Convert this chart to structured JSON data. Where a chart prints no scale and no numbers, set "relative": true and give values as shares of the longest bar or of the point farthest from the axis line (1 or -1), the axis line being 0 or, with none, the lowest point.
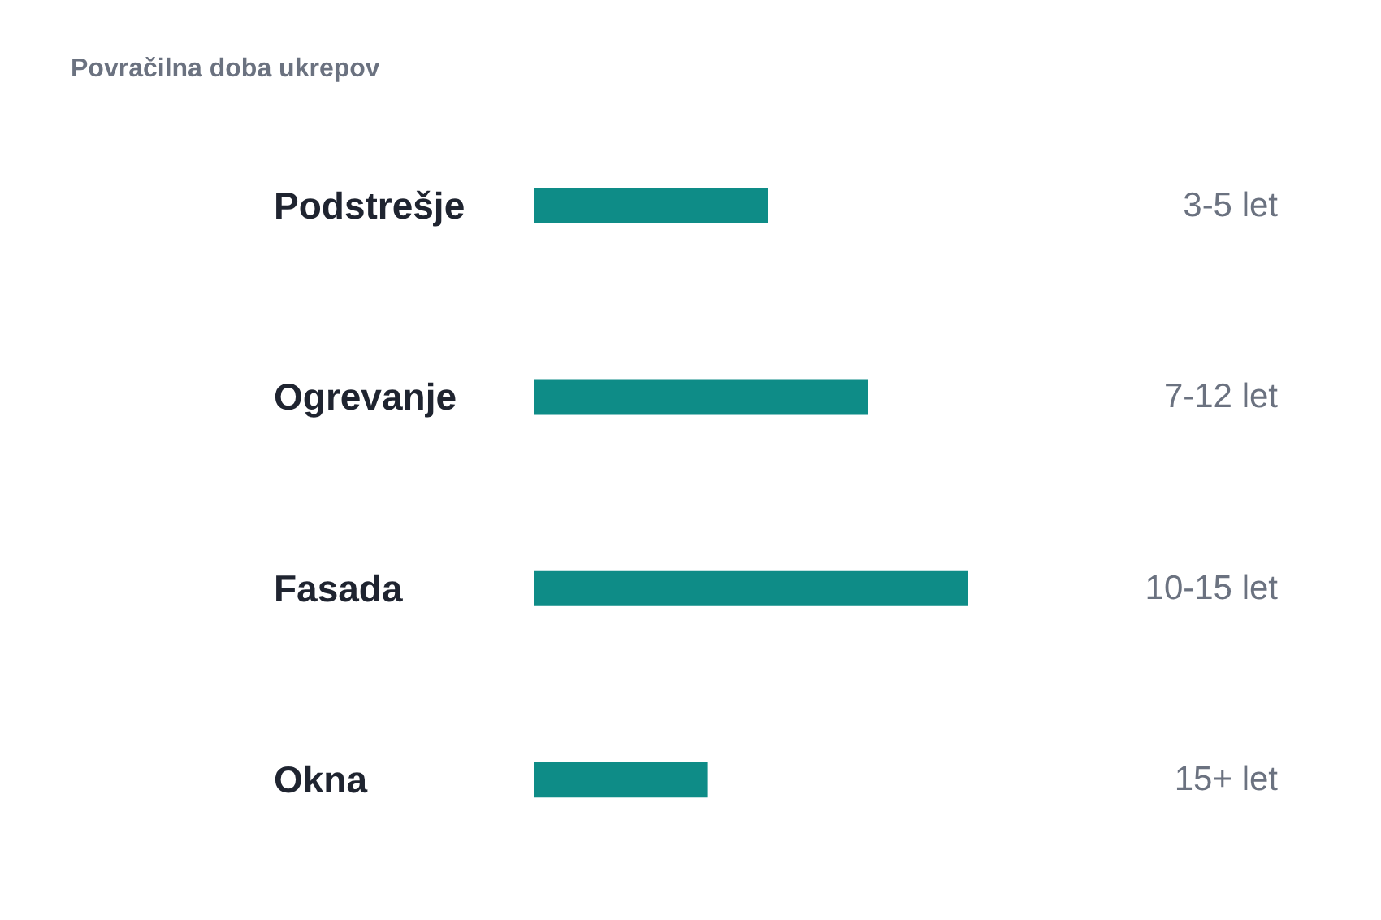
{
  "chart_data": {
    "type": "bar",
    "orientation": "horizontal",
    "relative": true,
    "title": "Povračilna doba ukrepov",
    "categories": [
      "Podstrešje",
      "Ogrevanje",
      "Fasada",
      "Okna"
    ],
    "values": [
      0.54,
      0.77,
      1,
      0.4
    ],
    "annotations": [
      "3-5 let",
      "7-12 let",
      "10-15 let",
      "15+ let"
    ],
    "color": "#0e8c87"
  }
}
